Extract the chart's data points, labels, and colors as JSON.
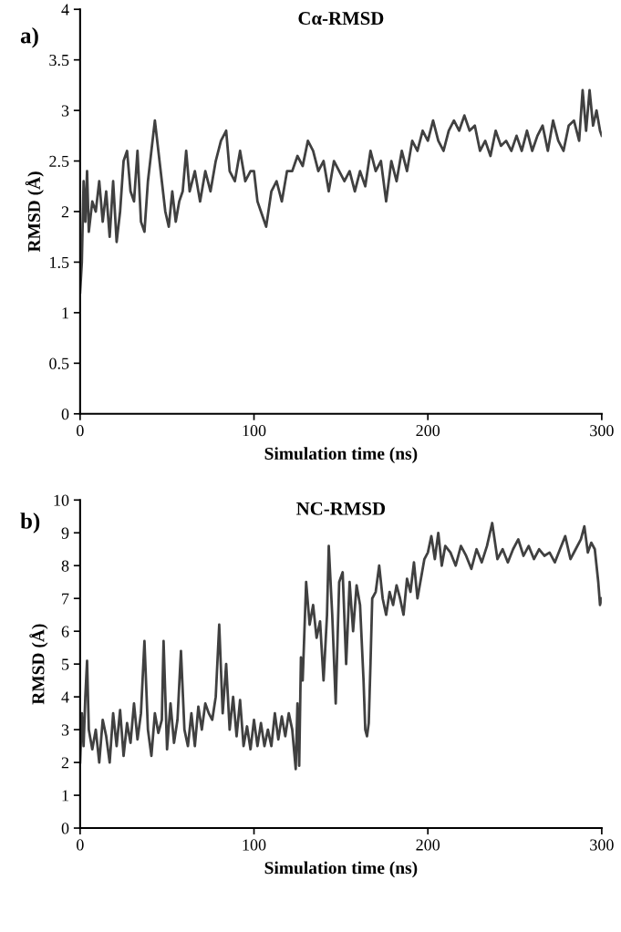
{
  "chart_data": [
    {
      "type": "line",
      "title": "Cα-RMSD",
      "xlabel": "Simulation time (ns)",
      "ylabel": "RMSD (Å)",
      "annotations": [
        "a)"
      ],
      "xlim": [
        0,
        300
      ],
      "xticks": [
        0,
        100,
        200,
        300
      ],
      "ylim": [
        0,
        4
      ],
      "yticks": [
        0,
        0.5,
        1,
        1.5,
        2,
        2.5,
        3,
        3.5,
        4
      ],
      "grid": false,
      "legend": false,
      "series": [
        {
          "color": "#404040",
          "x": [
            0,
            1,
            2,
            3,
            4,
            5,
            7,
            9,
            11,
            13,
            15,
            17,
            19,
            21,
            23,
            25,
            27,
            29,
            31,
            33,
            35,
            37,
            39,
            41,
            43,
            45,
            47,
            49,
            51,
            53,
            55,
            57,
            59,
            61,
            63,
            66,
            69,
            72,
            75,
            78,
            81,
            84,
            86,
            89,
            92,
            95,
            98,
            100,
            102,
            104,
            107,
            110,
            113,
            116,
            119,
            122,
            125,
            128,
            131,
            134,
            137,
            140,
            143,
            146,
            149,
            152,
            155,
            158,
            161,
            164,
            167,
            170,
            173,
            176,
            179,
            182,
            185,
            188,
            191,
            194,
            197,
            200,
            203,
            206,
            209,
            212,
            215,
            218,
            221,
            224,
            227,
            230,
            233,
            236,
            239,
            242,
            245,
            248,
            251,
            254,
            257,
            260,
            263,
            266,
            269,
            272,
            275,
            278,
            281,
            284,
            287,
            289,
            291,
            293,
            295,
            297,
            299,
            300
          ],
          "values": [
            1.2,
            1.5,
            2.3,
            1.9,
            2.4,
            1.8,
            2.1,
            2.0,
            2.3,
            1.9,
            2.2,
            1.75,
            2.3,
            1.7,
            2.0,
            2.5,
            2.6,
            2.2,
            2.1,
            2.6,
            1.9,
            1.8,
            2.3,
            2.6,
            2.9,
            2.6,
            2.3,
            2.0,
            1.85,
            2.2,
            1.9,
            2.1,
            2.2,
            2.6,
            2.2,
            2.4,
            2.1,
            2.4,
            2.2,
            2.5,
            2.7,
            2.8,
            2.4,
            2.3,
            2.6,
            2.3,
            2.4,
            2.4,
            2.1,
            2.0,
            1.85,
            2.2,
            2.3,
            2.1,
            2.4,
            2.4,
            2.55,
            2.45,
            2.7,
            2.6,
            2.4,
            2.5,
            2.2,
            2.5,
            2.4,
            2.3,
            2.4,
            2.2,
            2.4,
            2.25,
            2.6,
            2.4,
            2.5,
            2.1,
            2.5,
            2.3,
            2.6,
            2.4,
            2.7,
            2.6,
            2.8,
            2.7,
            2.9,
            2.7,
            2.6,
            2.8,
            2.9,
            2.8,
            2.95,
            2.8,
            2.85,
            2.6,
            2.7,
            2.55,
            2.8,
            2.65,
            2.7,
            2.6,
            2.75,
            2.6,
            2.8,
            2.6,
            2.75,
            2.85,
            2.6,
            2.9,
            2.7,
            2.6,
            2.85,
            2.9,
            2.7,
            3.2,
            2.8,
            3.2,
            2.85,
            3.0,
            2.8,
            2.75
          ]
        }
      ]
    },
    {
      "type": "line",
      "title": "NC-RMSD",
      "xlabel": "Simulation time (ns)",
      "ylabel": "RMSD (Å)",
      "annotations": [
        "b)"
      ],
      "xlim": [
        0,
        300
      ],
      "xticks": [
        0,
        100,
        200,
        300
      ],
      "ylim": [
        0,
        10
      ],
      "yticks": [
        0,
        1,
        2,
        3,
        4,
        5,
        6,
        7,
        8,
        9,
        10
      ],
      "grid": false,
      "legend": false,
      "series": [
        {
          "color": "#404040",
          "x": [
            0,
            1,
            2,
            3,
            4,
            5,
            7,
            9,
            11,
            13,
            15,
            17,
            19,
            21,
            23,
            25,
            27,
            29,
            31,
            33,
            35,
            37,
            39,
            41,
            43,
            45,
            47,
            48,
            50,
            52,
            54,
            56,
            58,
            60,
            62,
            64,
            66,
            68,
            70,
            72,
            74,
            76,
            78,
            80,
            82,
            84,
            86,
            88,
            90,
            92,
            94,
            96,
            98,
            100,
            102,
            104,
            106,
            108,
            110,
            112,
            114,
            116,
            118,
            120,
            122,
            124,
            125,
            126,
            127,
            128,
            129,
            130,
            132,
            134,
            136,
            138,
            140,
            142,
            143,
            145,
            147,
            149,
            151,
            153,
            155,
            157,
            159,
            161,
            163,
            164,
            165,
            166,
            167,
            168,
            170,
            172,
            174,
            176,
            178,
            180,
            182,
            184,
            186,
            188,
            190,
            192,
            194,
            196,
            198,
            200,
            202,
            204,
            206,
            208,
            210,
            213,
            216,
            219,
            222,
            225,
            228,
            231,
            234,
            237,
            240,
            243,
            246,
            249,
            252,
            255,
            258,
            261,
            264,
            267,
            270,
            273,
            276,
            279,
            282,
            285,
            288,
            290,
            292,
            294,
            296,
            298,
            299,
            300
          ],
          "values": [
            2.0,
            3.5,
            2.5,
            4.0,
            5.1,
            3.0,
            2.4,
            3.0,
            2.0,
            3.3,
            2.8,
            2.0,
            3.5,
            2.5,
            3.6,
            2.2,
            3.2,
            2.6,
            3.8,
            2.7,
            3.5,
            5.7,
            3.0,
            2.2,
            3.5,
            2.9,
            3.3,
            5.7,
            2.4,
            3.8,
            2.6,
            3.3,
            5.4,
            3.0,
            2.5,
            3.5,
            2.5,
            3.7,
            3.0,
            3.8,
            3.5,
            3.3,
            4.0,
            6.2,
            3.5,
            5.0,
            3.0,
            4.0,
            2.8,
            3.9,
            2.5,
            3.1,
            2.4,
            3.3,
            2.5,
            3.2,
            2.5,
            3.0,
            2.5,
            3.5,
            2.7,
            3.4,
            2.8,
            3.5,
            3.0,
            1.8,
            3.8,
            1.9,
            5.2,
            4.5,
            6.0,
            7.5,
            6.2,
            6.8,
            5.8,
            6.3,
            4.5,
            6.5,
            8.6,
            6.5,
            3.8,
            7.5,
            7.8,
            5.0,
            7.5,
            6.0,
            7.4,
            6.8,
            4.5,
            3.0,
            2.8,
            3.2,
            5.0,
            7.0,
            7.2,
            8.0,
            7.0,
            6.5,
            7.2,
            6.8,
            7.4,
            7.0,
            6.5,
            7.6,
            7.2,
            8.1,
            7.0,
            7.6,
            8.2,
            8.4,
            8.9,
            8.2,
            9.0,
            8.0,
            8.6,
            8.4,
            8.0,
            8.6,
            8.3,
            7.9,
            8.5,
            8.1,
            8.6,
            9.3,
            8.2,
            8.5,
            8.1,
            8.5,
            8.8,
            8.3,
            8.6,
            8.2,
            8.5,
            8.3,
            8.4,
            8.1,
            8.5,
            8.9,
            8.2,
            8.5,
            8.8,
            9.2,
            8.4,
            8.7,
            8.5,
            7.5,
            6.8,
            7.0
          ]
        }
      ]
    }
  ]
}
